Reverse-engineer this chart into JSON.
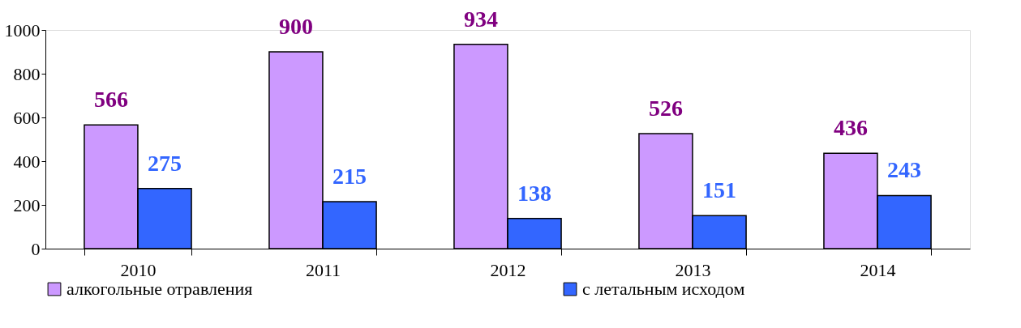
{
  "chart_data": {
    "type": "bar",
    "categories": [
      "2010",
      "2011",
      "2012",
      "2013",
      "2014"
    ],
    "series": [
      {
        "name": "алкогольные отравления",
        "color": "#cc99ff",
        "values": [
          566,
          900,
          934,
          526,
          436
        ]
      },
      {
        "name": "с летальным исходом",
        "color": "#3366ff",
        "values": [
          275,
          215,
          138,
          151,
          243
        ]
      }
    ],
    "ylim": [
      0,
      1000
    ],
    "yticks": [
      0,
      200,
      400,
      600,
      800,
      1000
    ],
    "data_labels": true,
    "grid": false,
    "legend": "bottom"
  }
}
